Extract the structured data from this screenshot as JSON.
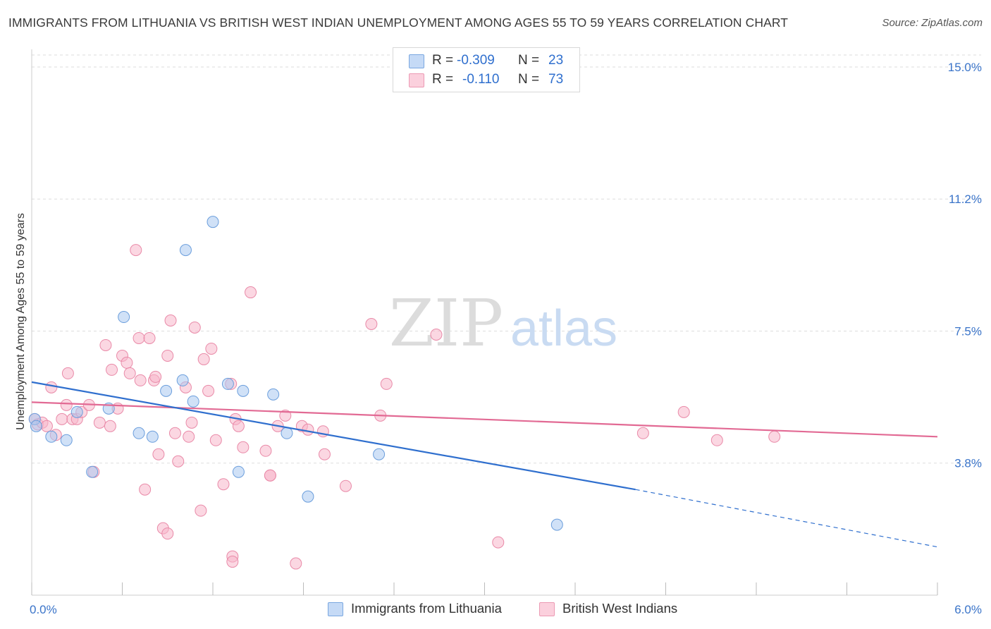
{
  "title": "IMMIGRANTS FROM LITHUANIA VS BRITISH WEST INDIAN UNEMPLOYMENT AMONG AGES 55 TO 59 YEARS CORRELATION CHART",
  "source": "Source: ZipAtlas.com",
  "watermark": {
    "zip": "ZIP",
    "atlas": "atlas"
  },
  "legend": {
    "rows": [
      {
        "r_label": "R =",
        "r_value": "-0.309",
        "n_label": "N =",
        "n_value": "23",
        "color": "#a9c8f0"
      },
      {
        "r_label": "R =",
        "r_value": "-0.110",
        "n_label": "N =",
        "n_value": "73",
        "color": "#f7b6ca"
      }
    ]
  },
  "colors": {
    "blue_fill": "#a9c8f0",
    "blue_stroke": "#6b9edc",
    "blue_line": "#2f6fce",
    "pink_fill": "#f7b6ca",
    "pink_stroke": "#e98aa8",
    "pink_line": "#e26a94",
    "grid": "#dddddd",
    "tick_label": "#3a74c9"
  },
  "chart_data": {
    "type": "scatter",
    "title": "IMMIGRANTS FROM LITHUANIA VS BRITISH WEST INDIAN UNEMPLOYMENT AMONG AGES 55 TO 59 YEARS CORRELATION CHART",
    "xlabel": "",
    "ylabel": "Unemployment Among Ages 55 to 59 years",
    "xlim": [
      0,
      6
    ],
    "ylim": [
      0,
      15.5
    ],
    "x_tick_labels": [
      "0.0%",
      "6.0%"
    ],
    "y_tick_labels": [
      "15.0%",
      "11.2%",
      "7.5%",
      "3.8%"
    ],
    "y_ticks": [
      15.0,
      11.25,
      7.5,
      3.75
    ],
    "grid": true,
    "legend_position": "top-center",
    "series": [
      {
        "name": "Immigrants from Lithuania",
        "color": "#a9c8f0",
        "x": [
          0.02,
          0.03,
          0.13,
          0.23,
          0.3,
          0.4,
          0.51,
          0.61,
          0.71,
          0.8,
          0.89,
          1.0,
          1.02,
          1.07,
          1.2,
          1.3,
          1.37,
          1.4,
          1.6,
          1.69,
          1.83,
          2.3,
          3.48
        ],
        "y": [
          5.0,
          4.8,
          4.5,
          4.4,
          5.2,
          3.5,
          5.3,
          7.9,
          4.6,
          4.5,
          5.8,
          6.1,
          9.8,
          5.5,
          10.6,
          6.0,
          3.5,
          5.8,
          5.7,
          4.6,
          2.8,
          4.0,
          2.0
        ],
        "trend": {
          "x": [
            0,
            4.0
          ],
          "y": [
            6.05,
            3.0
          ],
          "dashed_to": [
            6.0,
            1.37
          ]
        }
      },
      {
        "name": "British West Indians",
        "color": "#f7b6ca",
        "x": [
          0.02,
          0.04,
          0.07,
          0.1,
          0.13,
          0.16,
          0.2,
          0.23,
          0.24,
          0.27,
          0.3,
          0.33,
          0.38,
          0.41,
          0.45,
          0.49,
          0.52,
          0.53,
          0.57,
          0.6,
          0.63,
          0.65,
          0.69,
          0.71,
          0.72,
          0.75,
          0.78,
          0.81,
          0.82,
          0.84,
          0.87,
          0.9,
          0.9,
          0.92,
          0.95,
          0.97,
          1.02,
          1.04,
          1.06,
          1.08,
          1.12,
          1.14,
          1.17,
          1.19,
          1.22,
          1.27,
          1.32,
          1.33,
          1.33,
          1.35,
          1.37,
          1.4,
          1.45,
          1.55,
          1.58,
          1.58,
          1.63,
          1.68,
          1.75,
          1.79,
          1.83,
          1.93,
          1.94,
          2.08,
          2.25,
          2.31,
          2.35,
          2.68,
          3.09,
          4.05,
          4.32,
          4.54,
          4.92
        ],
        "y": [
          5.0,
          4.85,
          4.9,
          4.8,
          5.9,
          4.55,
          5.0,
          5.4,
          6.3,
          5.0,
          5.0,
          5.2,
          5.4,
          3.5,
          4.9,
          7.1,
          4.8,
          6.4,
          5.3,
          6.8,
          6.6,
          6.3,
          9.8,
          7.3,
          6.1,
          3.0,
          7.3,
          6.1,
          6.2,
          4.0,
          1.9,
          1.75,
          6.8,
          7.8,
          4.6,
          3.8,
          5.9,
          4.5,
          4.9,
          7.6,
          2.4,
          6.7,
          5.8,
          7.0,
          4.4,
          3.15,
          6.0,
          1.1,
          0.95,
          5.0,
          4.8,
          4.2,
          8.6,
          4.1,
          3.4,
          3.4,
          4.8,
          5.1,
          0.9,
          4.8,
          4.7,
          4.65,
          4.0,
          3.1,
          7.7,
          5.1,
          6.0,
          7.4,
          1.5,
          4.6,
          5.2,
          4.4,
          4.5
        ],
        "trend": {
          "x": [
            0,
            6.0
          ],
          "y": [
            5.48,
            4.5
          ]
        }
      }
    ]
  }
}
